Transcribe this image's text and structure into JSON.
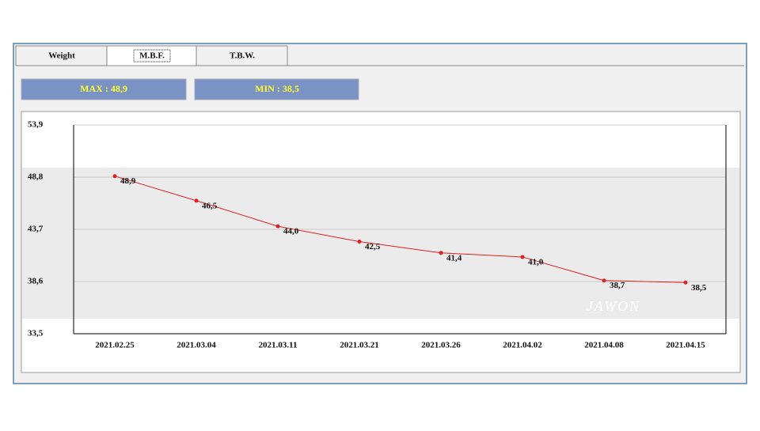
{
  "tabs": [
    "Weight",
    "M.B.F.",
    "T.B.W."
  ],
  "max_label": "MAX : 48,9",
  "min_label": "MIN : 38,5",
  "watermark": "JAWON",
  "chart_data": {
    "type": "line",
    "categories": [
      "2021.02.25",
      "2021.03.04",
      "2021.03.11",
      "2021.03.21",
      "2021.03.26",
      "2021.04.02",
      "2021.04.08",
      "2021.04.15"
    ],
    "series": [
      {
        "name": "M.B.F.",
        "color": "#e02020",
        "values": [
          48.9,
          46.5,
          44.0,
          42.5,
          41.4,
          41.0,
          38.7,
          38.5
        ],
        "value_labels": [
          "48,9",
          "46,5",
          "44,0",
          "42,5",
          "41,4",
          "41,0",
          "38,7",
          "38,5"
        ]
      }
    ],
    "ylim": [
      33.5,
      53.9
    ],
    "yticks": [
      {
        "value": 33.5,
        "label": "33,5"
      },
      {
        "value": 38.6,
        "label": "38,6"
      },
      {
        "value": 43.7,
        "label": "43,7"
      },
      {
        "value": 48.8,
        "label": "48,8"
      },
      {
        "value": 53.9,
        "label": "53,9"
      }
    ],
    "grid": true
  }
}
